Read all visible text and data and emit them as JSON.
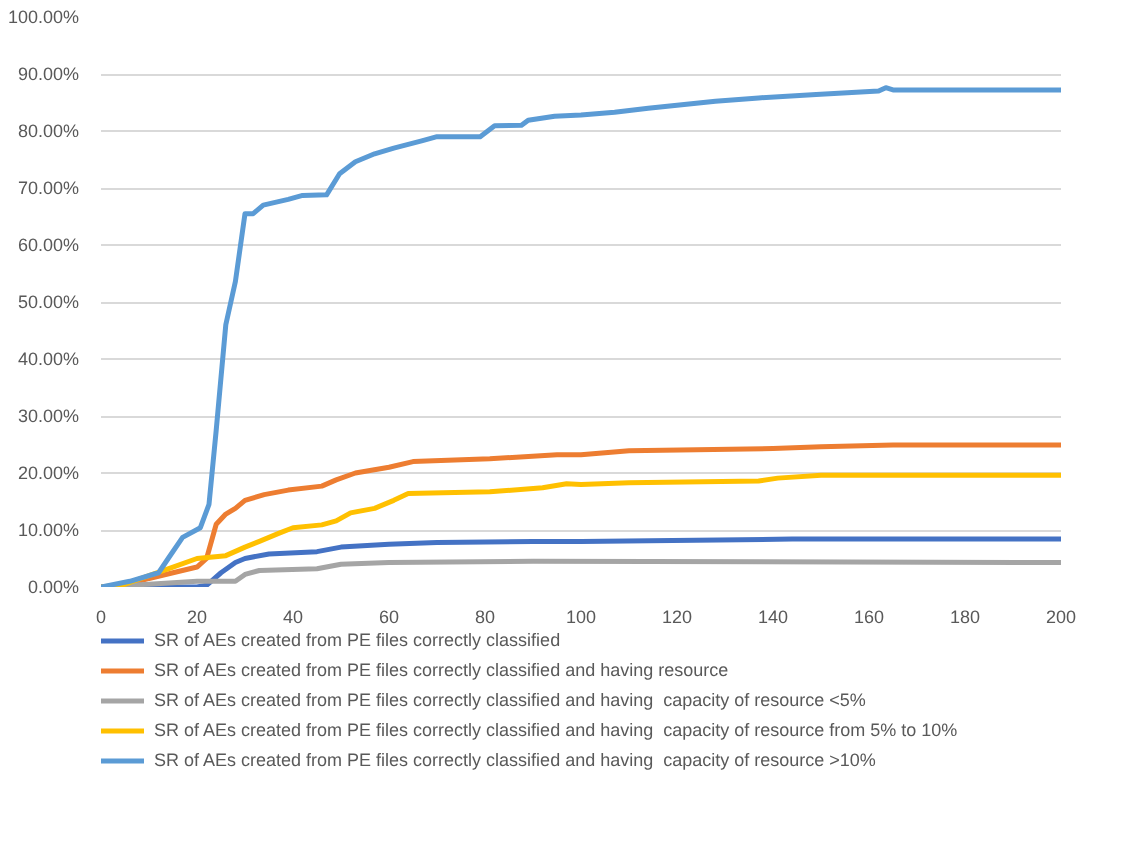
{
  "chart_data": {
    "type": "line",
    "xlim": [
      0,
      200
    ],
    "ylim": [
      0,
      100
    ],
    "xticks": [
      0,
      20,
      40,
      60,
      80,
      100,
      120,
      140,
      160,
      180,
      200
    ],
    "yticks": [
      {
        "value": 0,
        "label": "0.00%"
      },
      {
        "value": 10,
        "label": "10.00%"
      },
      {
        "value": 20,
        "label": "20.00%"
      },
      {
        "value": 30,
        "label": "30.00%"
      },
      {
        "value": 40,
        "label": "40.00%"
      },
      {
        "value": 50,
        "label": "50.00%"
      },
      {
        "value": 60,
        "label": "60.00%"
      },
      {
        "value": 70,
        "label": "70.00%"
      },
      {
        "value": 80,
        "label": "80.00%"
      },
      {
        "value": 90,
        "label": "90.00%"
      },
      {
        "value": 100,
        "label": "100.00%"
      }
    ],
    "grid": "y",
    "legend": "bottom",
    "line_style": "solid",
    "series": [
      {
        "name": "SR of AEs created from PE files correctly classified",
        "color": "#4472c4",
        "x": [
          0,
          20,
          22,
          25,
          28,
          30,
          35,
          45,
          50,
          60,
          70,
          90,
          100,
          144,
          200
        ],
        "values": [
          0,
          0,
          0.3,
          2.5,
          4.3,
          5,
          5.8,
          6.2,
          7,
          7.5,
          7.8,
          8,
          8,
          8.4,
          8.4
        ]
      },
      {
        "name": "SR of AEs created from PE files correctly classified and having resource",
        "color": "#ed7d31",
        "x": [
          0,
          5,
          10,
          15,
          20,
          22,
          24,
          26,
          28,
          30,
          34,
          39,
          46,
          49,
          53,
          60,
          65,
          81,
          95,
          100,
          110,
          140,
          150,
          165,
          200
        ],
        "values": [
          0,
          0.3,
          1.5,
          2.5,
          3.5,
          5,
          11,
          12.8,
          13.8,
          15.2,
          16.2,
          17,
          17.7,
          18.8,
          20,
          21,
          22,
          22.5,
          23.2,
          23.2,
          23.9,
          24.3,
          24.6,
          24.9,
          24.9
        ]
      },
      {
        "name": "SR of AEs created from PE files correctly classified and having  capacity of resource <5%",
        "color": "#a5a5a5",
        "x": [
          0,
          10,
          20,
          28,
          30,
          33,
          45,
          50,
          60,
          90,
          200
        ],
        "values": [
          0,
          0.5,
          1,
          1,
          2.2,
          2.9,
          3.2,
          4,
          4.3,
          4.5,
          4.3
        ]
      },
      {
        "name": "SR of AEs created from PE files correctly classified and having  capacity of resource from 5% to 10%",
        "color": "#ffc000",
        "x": [
          0,
          5,
          10,
          15,
          20,
          26,
          30,
          33,
          37,
          40,
          46,
          49,
          52,
          57,
          61,
          64,
          81,
          92,
          97,
          100,
          110,
          137,
          141,
          150,
          200
        ],
        "values": [
          0,
          0.5,
          2,
          3.5,
          5,
          5.5,
          7,
          8,
          9.4,
          10.4,
          10.9,
          11.6,
          13,
          13.8,
          15.2,
          16.4,
          16.7,
          17.4,
          18.1,
          18,
          18.3,
          18.6,
          19.1,
          19.6,
          19.6
        ]
      },
      {
        "name": "SR of AEs created from PE files correctly classified and having  capacity of resource >10%",
        "color": "#5b9bd5",
        "x": [
          0,
          6,
          12,
          14,
          17,
          20.7,
          22.5,
          24,
          26,
          28,
          30,
          31.7,
          33.8,
          39,
          42,
          47,
          49.7,
          53,
          57,
          61,
          67,
          70,
          79,
          82,
          87.6,
          89,
          94.5,
          100,
          107,
          114,
          128,
          137,
          149,
          162,
          163.5,
          165,
          200
        ],
        "values": [
          0,
          1,
          2.5,
          5,
          8.7,
          10.4,
          14.5,
          27.5,
          46,
          53.6,
          65.5,
          65.5,
          67,
          68,
          68.7,
          68.8,
          72.5,
          74.6,
          76,
          77,
          78.3,
          79,
          79,
          80.9,
          81,
          81.9,
          82.6,
          82.8,
          83.3,
          84,
          85.2,
          85.8,
          86.4,
          87,
          87.6,
          87.2,
          87.2
        ]
      }
    ]
  }
}
